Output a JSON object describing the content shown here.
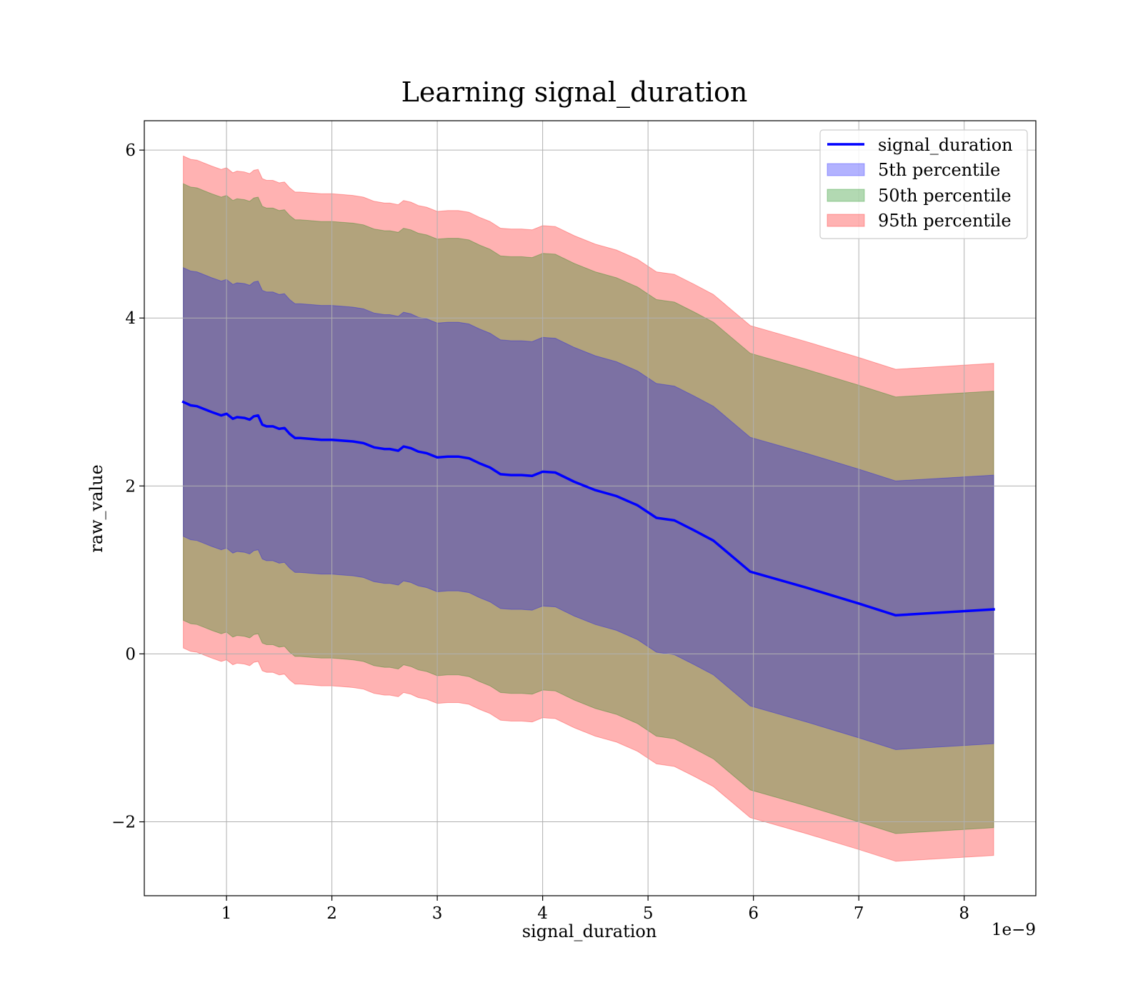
{
  "chart_data": {
    "type": "area",
    "title": "Learning signal_duration",
    "xlabel": "signal_duration",
    "ylabel": "raw_value",
    "x_scale_note": "1e−9",
    "xlim": [
      0.22,
      8.68
    ],
    "ylim": [
      -2.88,
      6.35
    ],
    "xticks": [
      1,
      2,
      3,
      4,
      5,
      6,
      7,
      8
    ],
    "yticks": [
      -2,
      0,
      2,
      4,
      6
    ],
    "ytick_labels": [
      "−2",
      "0",
      "2",
      "4",
      "6"
    ],
    "grid": true,
    "legend_position": "top-right",
    "x": [
      0.59,
      0.66,
      0.72,
      0.78,
      0.86,
      0.95,
      1.0,
      1.06,
      1.1,
      1.17,
      1.22,
      1.26,
      1.3,
      1.34,
      1.38,
      1.44,
      1.5,
      1.55,
      1.6,
      1.65,
      1.7,
      1.8,
      1.9,
      2.0,
      2.1,
      2.2,
      2.3,
      2.4,
      2.5,
      2.55,
      2.63,
      2.68,
      2.75,
      2.82,
      2.9,
      3.0,
      3.1,
      3.2,
      3.3,
      3.4,
      3.5,
      3.6,
      3.7,
      3.8,
      3.9,
      4.0,
      4.12,
      4.3,
      4.5,
      4.7,
      4.9,
      5.08,
      5.25,
      5.44,
      5.62,
      5.97,
      6.5,
      7.0,
      7.35,
      8.28
    ],
    "series": [
      {
        "name": "signal_duration",
        "color": "#0000ff",
        "values": [
          3.0,
          2.96,
          2.95,
          2.92,
          2.88,
          2.84,
          2.86,
          2.8,
          2.82,
          2.81,
          2.79,
          2.83,
          2.84,
          2.73,
          2.71,
          2.71,
          2.68,
          2.69,
          2.62,
          2.57,
          2.57,
          2.56,
          2.55,
          2.55,
          2.54,
          2.53,
          2.51,
          2.46,
          2.44,
          2.44,
          2.42,
          2.47,
          2.45,
          2.41,
          2.39,
          2.34,
          2.35,
          2.35,
          2.33,
          2.27,
          2.22,
          2.14,
          2.13,
          2.13,
          2.12,
          2.17,
          2.16,
          2.05,
          1.95,
          1.88,
          1.77,
          1.62,
          1.59,
          1.47,
          1.35,
          0.98,
          0.79,
          0.6,
          0.46,
          0.53
        ]
      },
      {
        "name": "5th percentile",
        "color": "#0000ff",
        "offset": 1.6
      },
      {
        "name": "50th percentile",
        "color": "#008000",
        "offset": 2.6
      },
      {
        "name": "95th percentile",
        "color": "#ff0000",
        "offset": 2.93
      }
    ]
  }
}
